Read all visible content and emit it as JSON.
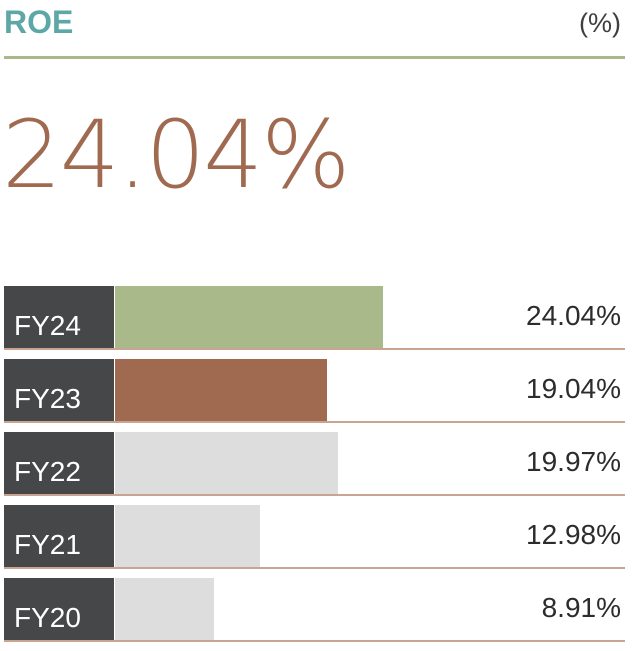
{
  "header": {
    "title": "ROE",
    "unit": "(%)"
  },
  "headline": {
    "value": "24.04%"
  },
  "colors": {
    "title": "#5da8a6",
    "headline": "#a06a50",
    "rule": "#a9b98a",
    "label_bg": "#464748",
    "bar_current": "#a9b98a",
    "bar_previous": "#a06a50",
    "bar_other": "#dddddd",
    "row_divider": "#c9a493"
  },
  "chart_data": {
    "type": "bar",
    "orientation": "horizontal",
    "categories": [
      "FY24",
      "FY23",
      "FY22",
      "FY21",
      "FY20"
    ],
    "values": [
      24.04,
      19.04,
      19.97,
      12.98,
      8.91
    ],
    "value_labels": [
      "24.04%",
      "19.04%",
      "19.97%",
      "12.98%",
      "8.91%"
    ],
    "bar_colors": [
      "#a9b98a",
      "#a06a50",
      "#dddddd",
      "#dddddd",
      "#dddddd"
    ],
    "xlim": [
      0,
      40
    ],
    "grid": false,
    "legend": "none"
  }
}
